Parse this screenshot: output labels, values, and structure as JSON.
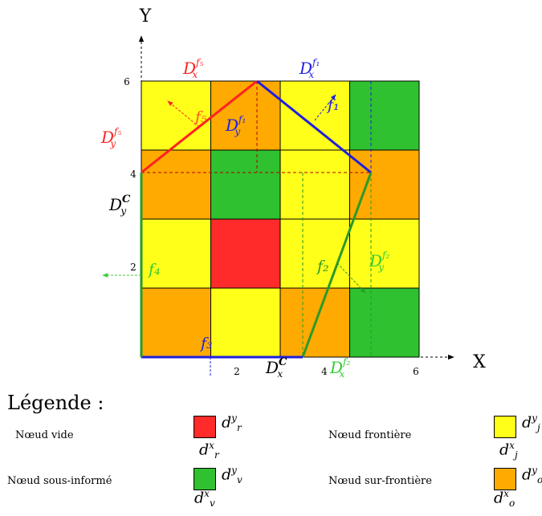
{
  "axes": {
    "x_label": "X",
    "y_label": "Y",
    "x_ticks": [
      "2",
      "4",
      "6"
    ],
    "y_ticks": [
      "2",
      "4",
      "6"
    ]
  },
  "colors": {
    "vide": "#ff2a2a",
    "frontiere": "#ffff1a",
    "sous_informe": "#2fc12f",
    "sur_frontiere": "#ffaa00",
    "polygon_f1": "#1f1fdf",
    "polygon_f2": "#2a9a2a",
    "polygon_f5": "#ff2222",
    "vector_f4": "#33cc33"
  },
  "grid": {
    "rows": [
      [
        "frontiere",
        "sur_frontiere",
        "frontiere",
        "sous_informe"
      ],
      [
        "sur_frontiere",
        "sous_informe",
        "frontiere",
        "sur_frontiere"
      ],
      [
        "frontiere",
        "vide",
        "frontiere",
        "frontiere"
      ],
      [
        "sur_frontiere",
        "frontiere",
        "sur_frontiere",
        "sous_informe"
      ]
    ]
  },
  "labels": {
    "Dx_f5": {
      "base": "D",
      "sub": "x",
      "sup": "f₅"
    },
    "Dx_f1": {
      "base": "D",
      "sub": "x",
      "sup": "f₁"
    },
    "Dy_f5": {
      "base": "D",
      "sub": "y",
      "sup": "f₅"
    },
    "Dy_f1": {
      "base": "D",
      "sub": "y",
      "sup": "f₁"
    },
    "Dy_C": {
      "base": "D",
      "sub": "y",
      "sup": "C"
    },
    "Dy_f2": {
      "base": "D",
      "sub": "y",
      "sup": "f₂"
    },
    "Dx_C": {
      "base": "D",
      "sub": "x",
      "sup": "C"
    },
    "Dx_f2": {
      "base": "D",
      "sub": "x",
      "sup": "f₂"
    },
    "f1": "f₁",
    "f2": "f₂",
    "f3": "f₃",
    "f4": "f₄",
    "f5": "f₅"
  },
  "legend": {
    "title": "Légende :",
    "items": [
      {
        "label": "Nœud vide",
        "color_key": "vide",
        "sup": "y",
        "sub_char": "r"
      },
      {
        "label": "Nœud frontière",
        "color_key": "frontiere",
        "sup": "y",
        "sub_char": "j"
      },
      {
        "label": "Nœud sous-informé",
        "color_key": "sous_informe",
        "sup": "y",
        "sub_char": "v"
      },
      {
        "label": "Nœud sur-frontière",
        "color_key": "sur_frontiere",
        "sup": "y",
        "sub_char": "o"
      }
    ]
  }
}
